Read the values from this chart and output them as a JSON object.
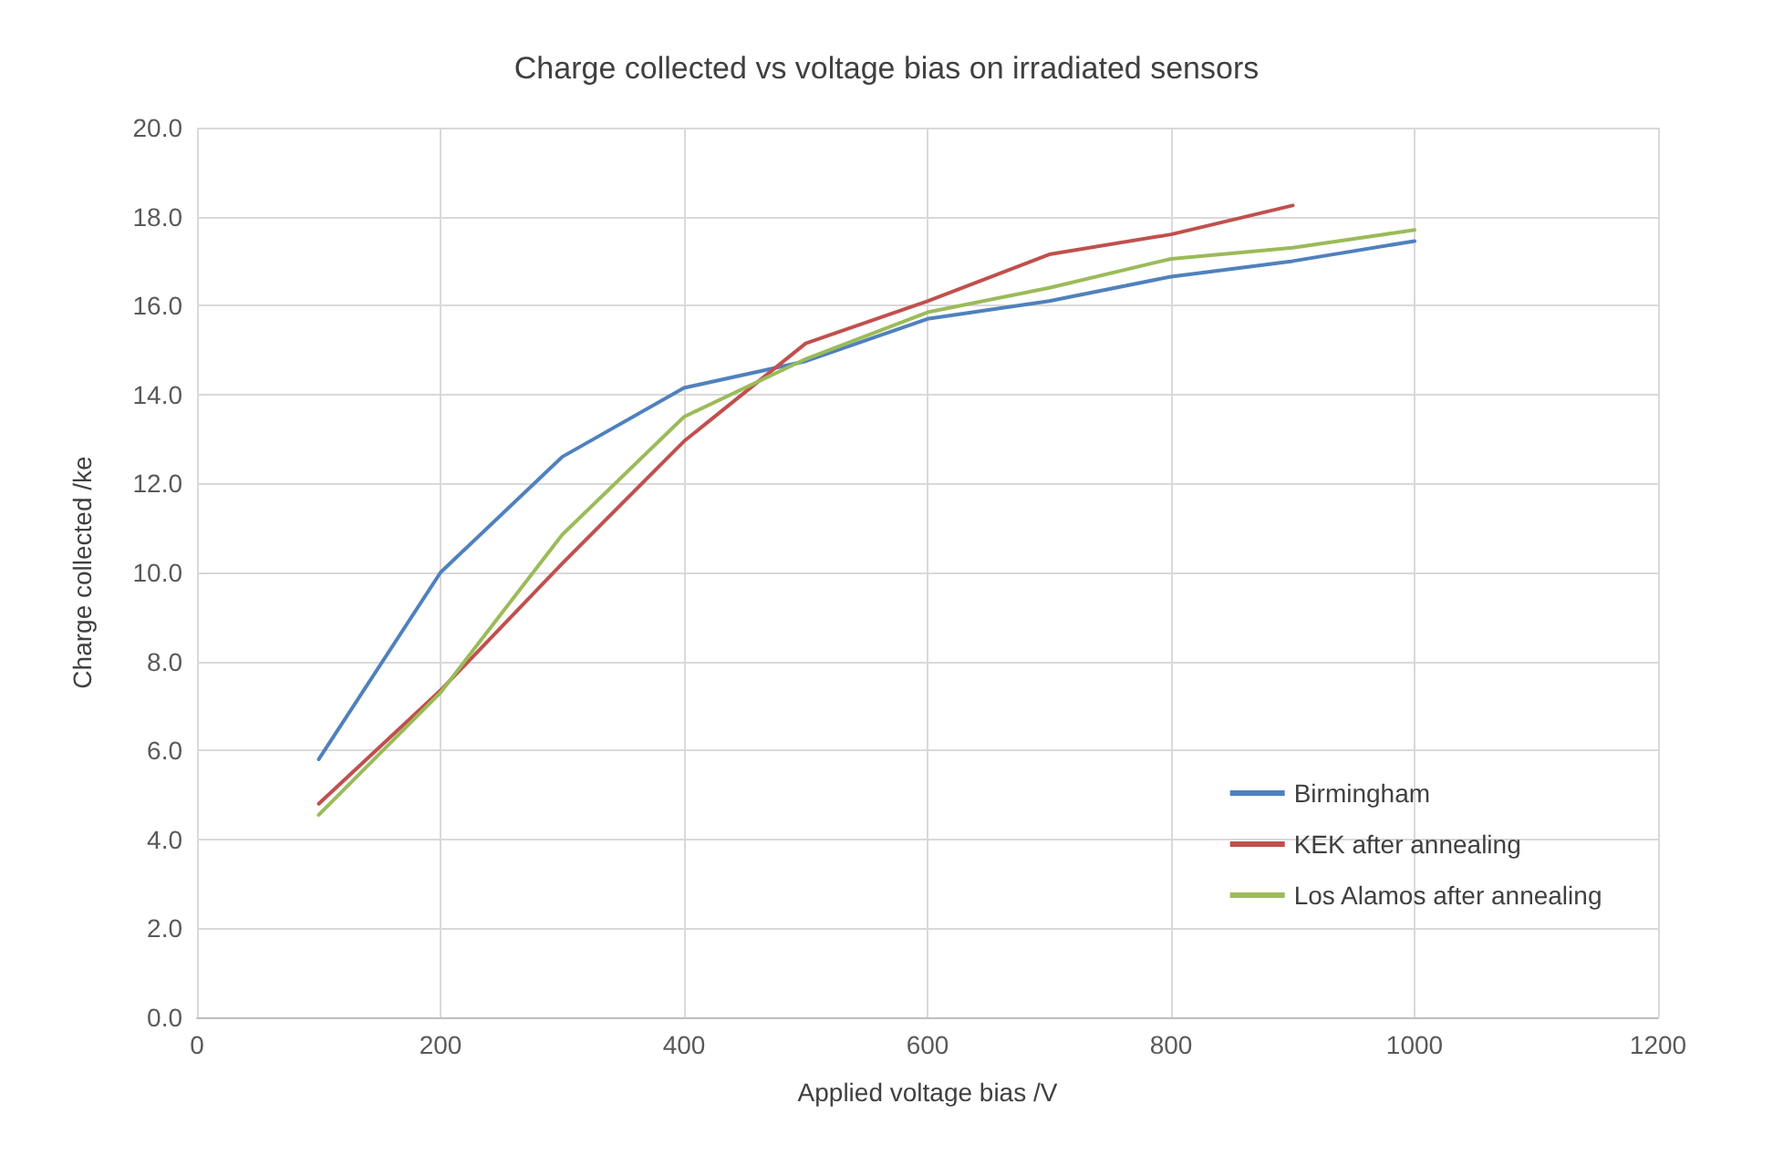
{
  "chart_data": {
    "type": "line",
    "title": "Charge collected vs voltage bias on irradiated sensors",
    "xlabel": "Applied voltage bias /V",
    "ylabel": "Charge collected /ke",
    "x": [
      100,
      200,
      300,
      400,
      500,
      600,
      700,
      800,
      900,
      1000
    ],
    "series": [
      {
        "name": "Birmingham",
        "color": "#4f81bd",
        "values": [
          5.8,
          10.0,
          12.6,
          14.15,
          14.75,
          15.7,
          16.1,
          16.65,
          17.0,
          17.45
        ]
      },
      {
        "name": "KEK after annealing",
        "color": "#c0504d",
        "values": [
          4.8,
          7.35,
          10.2,
          12.95,
          15.15,
          16.1,
          17.15,
          17.6,
          18.25,
          null
        ]
      },
      {
        "name": "Los Alamos after annealing",
        "color": "#9bbb59",
        "values": [
          4.55,
          7.3,
          10.85,
          13.5,
          14.8,
          15.85,
          16.4,
          17.05,
          17.3,
          17.7
        ]
      }
    ],
    "xlim": [
      0,
      1200
    ],
    "xticks": [
      0,
      200,
      400,
      600,
      800,
      1000,
      1200
    ],
    "ylim": [
      0,
      20
    ],
    "yticks": [
      {
        "value": 0,
        "label": "0.0"
      },
      {
        "value": 2,
        "label": "2.0"
      },
      {
        "value": 4,
        "label": "4.0"
      },
      {
        "value": 6,
        "label": "6.0"
      },
      {
        "value": 8,
        "label": "8.0"
      },
      {
        "value": 10,
        "label": "10.0"
      },
      {
        "value": 12,
        "label": "12.0"
      },
      {
        "value": 14,
        "label": "14.0"
      },
      {
        "value": 16,
        "label": "16.0"
      },
      {
        "value": 18,
        "label": "18.0"
      },
      {
        "value": 20,
        "label": "20.0"
      }
    ],
    "grid": true,
    "legend": "bottom right",
    "marker": "none",
    "line_style": "solid"
  }
}
